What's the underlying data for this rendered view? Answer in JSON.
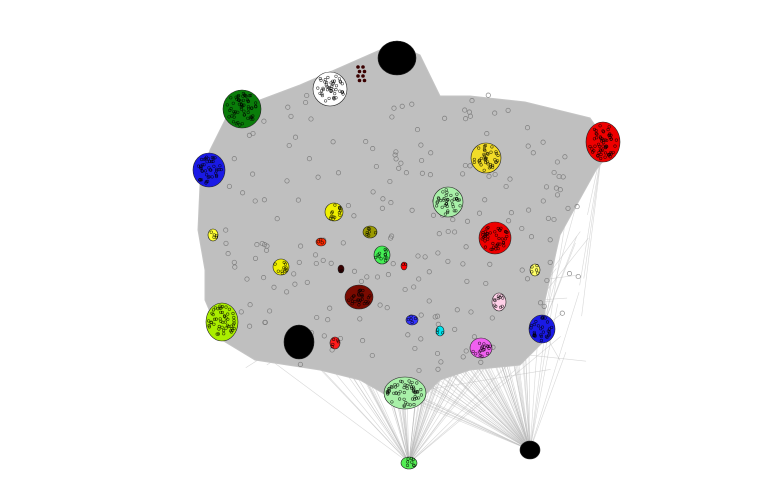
{
  "graph": {
    "background": "#ffffff",
    "edge_color": "#bdbdbd",
    "node_outline_color": "#000000",
    "clusters": [
      {
        "name": "black-top",
        "color": "#000000"
      },
      {
        "name": "white-top",
        "color": "#ffffff"
      },
      {
        "name": "maroon-dots",
        "color": "#3a0000"
      },
      {
        "name": "green-left",
        "color": "#0a7d0a"
      },
      {
        "name": "blue-left",
        "color": "#1a1ae6"
      },
      {
        "name": "red-right",
        "color": "#ee0000"
      },
      {
        "name": "yellow-top-right",
        "color": "#f2dc28"
      },
      {
        "name": "lightgreen-mid",
        "color": "#a8f0a8"
      },
      {
        "name": "red-mid",
        "color": "#ee0000"
      },
      {
        "name": "yellow-small-1",
        "color": "#f0f000"
      },
      {
        "name": "olive",
        "color": "#9a9a00"
      },
      {
        "name": "red-tiny-1",
        "color": "#ff2a00"
      },
      {
        "name": "green-small",
        "color": "#44ee55"
      },
      {
        "name": "yellow-small-2",
        "color": "#f0f000"
      },
      {
        "name": "yellow-left-edge",
        "color": "#ffff33"
      },
      {
        "name": "maroon-tiny",
        "color": "#3a0000"
      },
      {
        "name": "red-tiny-2",
        "color": "#ff0000"
      },
      {
        "name": "yellow-right-edge",
        "color": "#ffff66"
      },
      {
        "name": "pink-tiny",
        "color": "#ffd0e8"
      },
      {
        "name": "darkred-center",
        "color": "#7a0a00"
      },
      {
        "name": "blue-right",
        "color": "#1a1ae6"
      },
      {
        "name": "yellowgreen-left",
        "color": "#aaee00"
      },
      {
        "name": "black-bottom-left",
        "color": "#000000"
      },
      {
        "name": "red-small-bottom",
        "color": "#ff1a1a"
      },
      {
        "name": "blue-tiny",
        "color": "#3333ff"
      },
      {
        "name": "cyan-tiny",
        "color": "#00e5ee"
      },
      {
        "name": "magenta",
        "color": "#f060f0"
      },
      {
        "name": "lightgreen-bottom",
        "color": "#a8f0a8"
      },
      {
        "name": "black-bottom-right",
        "color": "#000000"
      },
      {
        "name": "green-bottom",
        "color": "#55ee55"
      }
    ]
  }
}
